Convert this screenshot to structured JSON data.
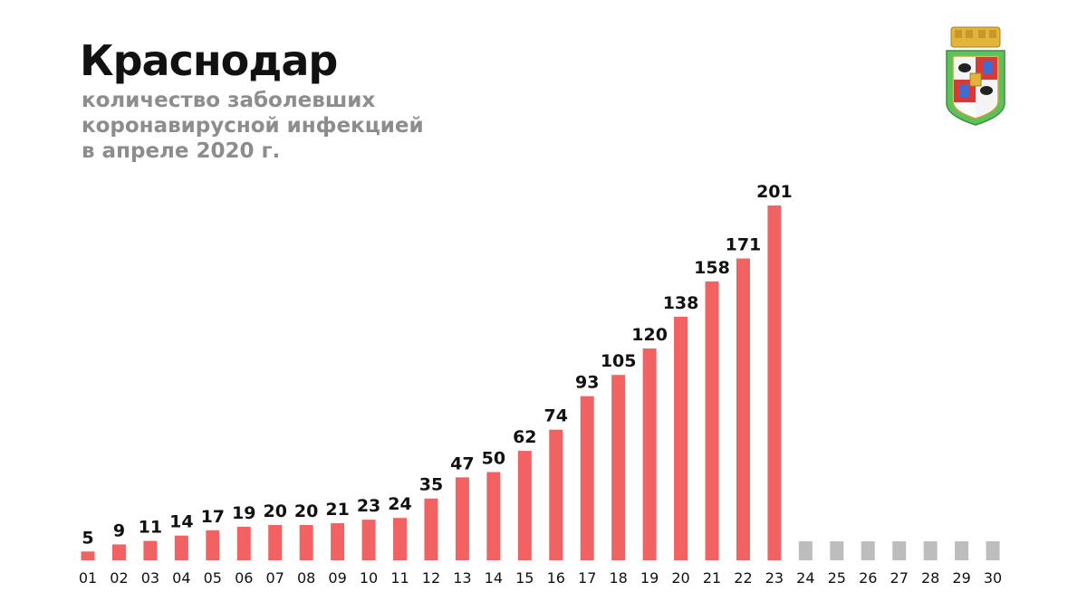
{
  "title": "Краснодар",
  "subtitle_lines": [
    "количество заболевших",
    "коронавирусной инфекцией",
    "в апреле 2020 г."
  ],
  "colors": {
    "bar": "#f26262",
    "placeholder": "#bdbdbd",
    "title": "#111111",
    "subtitle": "#8d8d8d"
  },
  "chart_data": {
    "type": "bar",
    "title": "Краснодар",
    "subtitle": "количество заболевших коронавирусной инфекцией в апреле 2020 г.",
    "xlabel": "",
    "ylabel": "",
    "ylim": [
      0,
      201
    ],
    "grid": false,
    "legend": "none",
    "categories": [
      "01",
      "02",
      "03",
      "04",
      "05",
      "06",
      "07",
      "08",
      "09",
      "10",
      "11",
      "12",
      "13",
      "14",
      "15",
      "16",
      "17",
      "18",
      "19",
      "20",
      "21",
      "22",
      "23",
      "24",
      "25",
      "26",
      "27",
      "28",
      "29",
      "30"
    ],
    "values": [
      5,
      9,
      11,
      14,
      17,
      19,
      20,
      20,
      21,
      23,
      24,
      35,
      47,
      50,
      62,
      74,
      93,
      105,
      120,
      138,
      158,
      171,
      201,
      null,
      null,
      null,
      null,
      null,
      null,
      null
    ]
  },
  "icons": {
    "coat_of_arms": "krasnodar-coat-of-arms-icon"
  }
}
